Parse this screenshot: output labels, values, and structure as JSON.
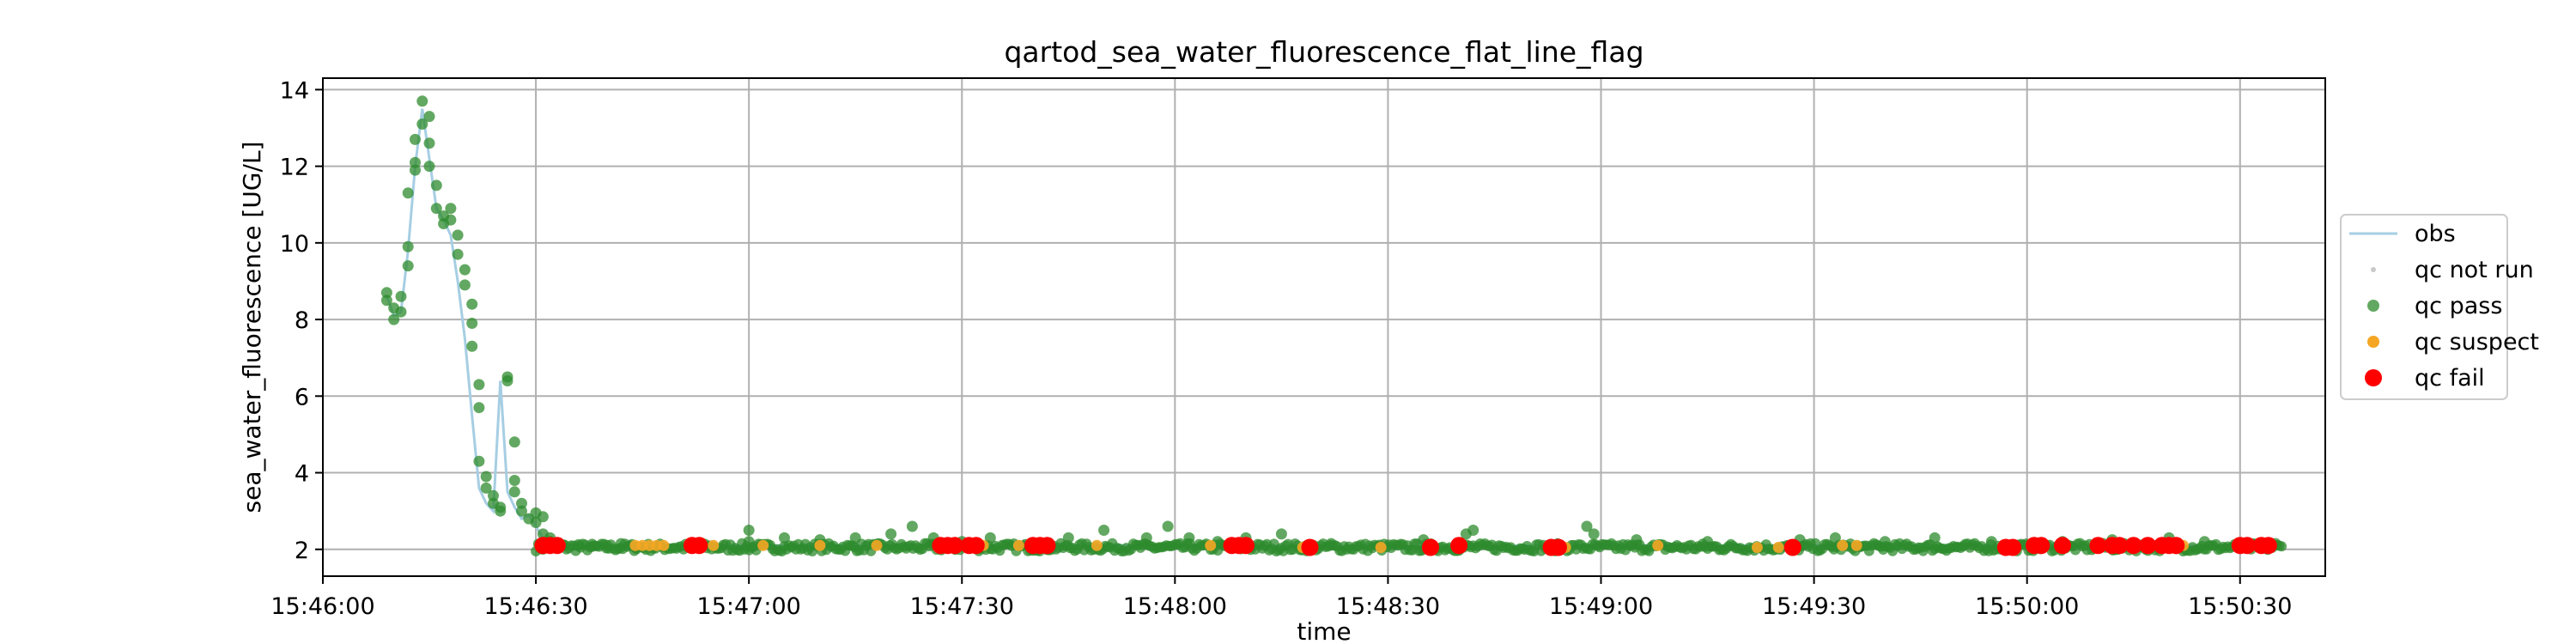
{
  "chart_data": {
    "type": "scatter",
    "title": "qartod_sea_water_fluorescence_flat_line_flag",
    "xlabel": "time",
    "ylabel": "sea_water_fluorescence [UG/L]",
    "xlim": [
      "15:46:00",
      "15:50:42"
    ],
    "ylim": [
      1.3,
      14.3
    ],
    "x_ticks": [
      "15:46:00",
      "15:46:30",
      "15:47:00",
      "15:47:30",
      "15:48:00",
      "15:48:30",
      "15:49:00",
      "15:49:30",
      "15:50:00",
      "15:50:30"
    ],
    "y_ticks": [
      2,
      4,
      6,
      8,
      10,
      12,
      14
    ],
    "grid": true,
    "legend_placement": "center-right outside",
    "colors": {
      "obs": "#a6cee3",
      "qc_not_run": "#c9c9c9",
      "qc_pass": "#2e8b2e",
      "qc_suspect": "#f5a623",
      "qc_fail": "#ff0000"
    },
    "legend": [
      {
        "key": "obs",
        "label": "obs",
        "marker": "line"
      },
      {
        "key": "qc_not_run",
        "label": "qc not run",
        "marker": "dot-small"
      },
      {
        "key": "qc_pass",
        "label": "qc pass",
        "marker": "dot"
      },
      {
        "key": "qc_suspect",
        "label": "qc suspect",
        "marker": "dot-mid"
      },
      {
        "key": "qc_fail",
        "label": "qc fail",
        "marker": "dot-large"
      }
    ],
    "series": [
      {
        "name": "obs",
        "x": [
          "15:46:09",
          "15:46:10",
          "15:46:11",
          "15:46:12",
          "15:46:13",
          "15:46:14",
          "15:46:15",
          "15:46:16",
          "15:46:17",
          "15:46:18",
          "15:46:19",
          "15:46:20",
          "15:46:21",
          "15:46:22",
          "15:46:23",
          "15:46:24",
          "15:46:25",
          "15:46:26",
          "15:46:27",
          "15:46:28",
          "15:46:29",
          "15:46:30",
          "15:46:31",
          "15:46:33",
          "15:46:36",
          "15:46:40",
          "15:46:45",
          "15:47:00",
          "15:47:30",
          "15:48:00",
          "15:48:30",
          "15:49:00",
          "15:49:30",
          "15:50:00",
          "15:50:35"
        ],
        "y": [
          8.6,
          8.1,
          8.2,
          9.8,
          12.0,
          13.5,
          12.2,
          10.9,
          10.6,
          10.2,
          9.0,
          7.5,
          5.5,
          3.6,
          3.2,
          3.0,
          6.4,
          3.5,
          3.1,
          2.8,
          2.9,
          2.6,
          2.3,
          2.15,
          2.1,
          2.08,
          2.1,
          2.1,
          2.1,
          2.1,
          2.08,
          2.1,
          2.1,
          2.1,
          2.1
        ]
      },
      {
        "name": "qc pass",
        "points": [
          [
            "15:46:09",
            8.7
          ],
          [
            "15:46:09",
            8.5
          ],
          [
            "15:46:10",
            8.0
          ],
          [
            "15:46:10",
            8.3
          ],
          [
            "15:46:11",
            8.2
          ],
          [
            "15:46:11",
            8.6
          ],
          [
            "15:46:12",
            9.4
          ],
          [
            "15:46:12",
            9.9
          ],
          [
            "15:46:12",
            11.3
          ],
          [
            "15:46:13",
            11.9
          ],
          [
            "15:46:13",
            12.1
          ],
          [
            "15:46:13",
            12.7
          ],
          [
            "15:46:14",
            13.1
          ],
          [
            "15:46:14",
            13.7
          ],
          [
            "15:46:15",
            13.3
          ],
          [
            "15:46:15",
            12.6
          ],
          [
            "15:46:15",
            12.0
          ],
          [
            "15:46:16",
            11.5
          ],
          [
            "15:46:16",
            10.9
          ],
          [
            "15:46:17",
            10.7
          ],
          [
            "15:46:17",
            10.5
          ],
          [
            "15:46:18",
            10.9
          ],
          [
            "15:46:18",
            10.6
          ],
          [
            "15:46:19",
            10.2
          ],
          [
            "15:46:19",
            9.7
          ],
          [
            "15:46:20",
            9.3
          ],
          [
            "15:46:20",
            8.9
          ],
          [
            "15:46:21",
            8.4
          ],
          [
            "15:46:21",
            7.9
          ],
          [
            "15:46:21",
            7.3
          ],
          [
            "15:46:22",
            6.3
          ],
          [
            "15:46:22",
            5.7
          ],
          [
            "15:46:22",
            4.3
          ],
          [
            "15:46:23",
            3.9
          ],
          [
            "15:46:23",
            3.6
          ],
          [
            "15:46:24",
            3.4
          ],
          [
            "15:46:24",
            3.2
          ],
          [
            "15:46:25",
            3.0
          ],
          [
            "15:46:25",
            3.1
          ],
          [
            "15:46:26",
            6.5
          ],
          [
            "15:46:26",
            6.4
          ],
          [
            "15:46:27",
            4.8
          ],
          [
            "15:46:27",
            3.8
          ],
          [
            "15:46:27",
            3.5
          ],
          [
            "15:46:28",
            3.2
          ],
          [
            "15:46:28",
            3.0
          ],
          [
            "15:46:29",
            2.8
          ],
          [
            "15:46:30",
            2.95
          ],
          [
            "15:46:30",
            2.7
          ],
          [
            "15:46:31",
            2.85
          ],
          [
            "15:46:31",
            2.4
          ],
          [
            "15:46:32",
            2.3
          ],
          [
            "15:46:32",
            2.2
          ],
          [
            "15:46:33",
            2.15
          ],
          [
            "15:46:34",
            2.1
          ],
          [
            "15:46:36",
            2.12
          ],
          [
            "15:46:38",
            2.08
          ],
          [
            "15:46:40",
            2.1
          ],
          [
            "15:46:42",
            2.15
          ],
          [
            "15:46:44",
            2.05
          ],
          [
            "15:47:00",
            2.5
          ],
          [
            "15:47:00",
            2.2
          ],
          [
            "15:47:05",
            2.3
          ],
          [
            "15:47:10",
            2.25
          ],
          [
            "15:47:15",
            2.3
          ],
          [
            "15:47:20",
            2.4
          ],
          [
            "15:47:23",
            2.6
          ],
          [
            "15:47:26",
            2.3
          ],
          [
            "15:47:30",
            2.2
          ],
          [
            "15:47:34",
            2.3
          ],
          [
            "15:47:45",
            2.3
          ],
          [
            "15:47:50",
            2.5
          ],
          [
            "15:47:56",
            2.3
          ],
          [
            "15:47:59",
            2.6
          ],
          [
            "15:48:02",
            2.3
          ],
          [
            "15:48:06",
            2.2
          ],
          [
            "15:48:10",
            2.3
          ],
          [
            "15:48:15",
            2.4
          ],
          [
            "15:48:22",
            2.15
          ],
          [
            "15:48:35",
            2.25
          ],
          [
            "15:48:41",
            2.4
          ],
          [
            "15:48:42",
            2.5
          ],
          [
            "15:48:58",
            2.6
          ],
          [
            "15:48:59",
            2.4
          ],
          [
            "15:49:05",
            2.25
          ],
          [
            "15:49:15",
            2.2
          ],
          [
            "15:49:28",
            2.25
          ],
          [
            "15:49:33",
            2.3
          ],
          [
            "15:49:40",
            2.2
          ],
          [
            "15:49:47",
            2.3
          ],
          [
            "15:49:55",
            2.2
          ],
          [
            "15:50:05",
            2.2
          ],
          [
            "15:50:12",
            2.25
          ],
          [
            "15:50:20",
            2.3
          ],
          [
            "15:50:25",
            2.2
          ],
          [
            "15:50:35",
            2.15
          ]
        ],
        "band": {
          "from": "15:46:30",
          "to": "15:50:36",
          "y_min": 1.95,
          "y_max": 2.3
        }
      },
      {
        "name": "qc suspect",
        "points": [
          [
            "15:46:44",
            2.1
          ],
          [
            "15:46:45",
            2.1
          ],
          [
            "15:46:46",
            2.1
          ],
          [
            "15:46:47",
            2.1
          ],
          [
            "15:46:48",
            2.1
          ],
          [
            "15:46:53",
            2.1
          ],
          [
            "15:46:55",
            2.1
          ],
          [
            "15:47:02",
            2.1
          ],
          [
            "15:47:10",
            2.1
          ],
          [
            "15:47:18",
            2.1
          ],
          [
            "15:47:33",
            2.1
          ],
          [
            "15:47:38",
            2.1
          ],
          [
            "15:47:49",
            2.1
          ],
          [
            "15:48:05",
            2.1
          ],
          [
            "15:48:18",
            2.05
          ],
          [
            "15:48:29",
            2.05
          ],
          [
            "15:48:55",
            2.05
          ],
          [
            "15:49:08",
            2.1
          ],
          [
            "15:49:22",
            2.05
          ],
          [
            "15:49:25",
            2.05
          ],
          [
            "15:49:34",
            2.1
          ],
          [
            "15:49:36",
            2.1
          ],
          [
            "15:50:20",
            2.1
          ],
          [
            "15:50:22",
            2.1
          ]
        ]
      },
      {
        "name": "qc fail",
        "points": [
          [
            "15:46:31",
            2.1
          ],
          [
            "15:46:32",
            2.1
          ],
          [
            "15:46:33",
            2.1
          ],
          [
            "15:46:52",
            2.1
          ],
          [
            "15:46:53",
            2.1
          ],
          [
            "15:47:27",
            2.1
          ],
          [
            "15:47:28",
            2.1
          ],
          [
            "15:47:29",
            2.1
          ],
          [
            "15:47:31",
            2.1
          ],
          [
            "15:47:32",
            2.1
          ],
          [
            "15:47:40",
            2.1
          ],
          [
            "15:47:41",
            2.1
          ],
          [
            "15:47:42",
            2.1
          ],
          [
            "15:48:08",
            2.1
          ],
          [
            "15:48:09",
            2.1
          ],
          [
            "15:48:10",
            2.1
          ],
          [
            "15:48:19",
            2.05
          ],
          [
            "15:48:36",
            2.05
          ],
          [
            "15:48:40",
            2.1
          ],
          [
            "15:48:53",
            2.05
          ],
          [
            "15:48:54",
            2.05
          ],
          [
            "15:49:27",
            2.05
          ],
          [
            "15:49:57",
            2.05
          ],
          [
            "15:49:58",
            2.05
          ],
          [
            "15:50:01",
            2.1
          ],
          [
            "15:50:02",
            2.1
          ],
          [
            "15:50:05",
            2.1
          ],
          [
            "15:50:10",
            2.1
          ],
          [
            "15:50:12",
            2.1
          ],
          [
            "15:50:13",
            2.1
          ],
          [
            "15:50:15",
            2.1
          ],
          [
            "15:50:17",
            2.1
          ],
          [
            "15:50:19",
            2.1
          ],
          [
            "15:50:20",
            2.1
          ],
          [
            "15:50:21",
            2.1
          ],
          [
            "15:50:30",
            2.1
          ],
          [
            "15:50:31",
            2.1
          ],
          [
            "15:50:33",
            2.1
          ],
          [
            "15:50:34",
            2.1
          ]
        ]
      }
    ]
  }
}
